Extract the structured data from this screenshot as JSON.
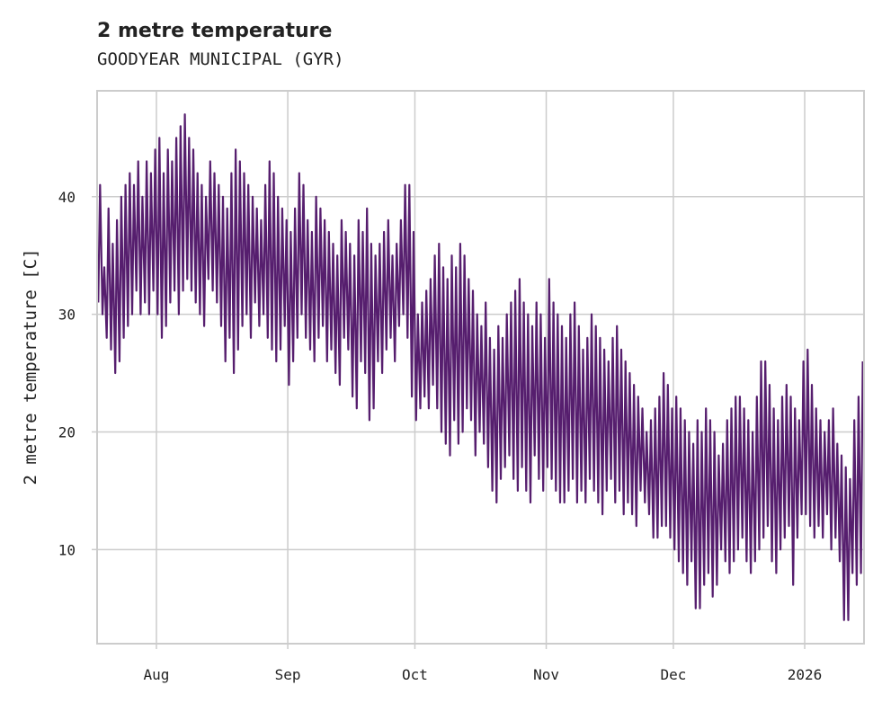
{
  "chart_data": {
    "type": "line",
    "title": "2 metre temperature",
    "subtitle": "GOODYEAR MUNICIPAL (GYR)",
    "xlabel": "",
    "ylabel": "2 metre temperature [C]",
    "start_date": "2025-07-18",
    "xlim_days": [
      0,
      181
    ],
    "ylim": [
      2,
      49
    ],
    "grid": true,
    "line_color": "#561e6e",
    "x_ticks": [
      {
        "label": "Aug",
        "day": 14
      },
      {
        "label": "Sep",
        "day": 45
      },
      {
        "label": "Oct",
        "day": 75
      },
      {
        "label": "Nov",
        "day": 106
      },
      {
        "label": "Dec",
        "day": 136
      },
      {
        "label": "2026",
        "day": 167
      }
    ],
    "y_ticks": [
      10,
      20,
      30,
      40
    ],
    "series": [
      {
        "name": "2 metre temperature",
        "daily_high": [
          41,
          34,
          39,
          36,
          38,
          40,
          41,
          42,
          41,
          43,
          40,
          43,
          42,
          44,
          45,
          42,
          44,
          43,
          45,
          46,
          47,
          45,
          44,
          42,
          41,
          40,
          43,
          42,
          41,
          40,
          39,
          42,
          44,
          43,
          42,
          41,
          40,
          39,
          38,
          41,
          43,
          42,
          40,
          39,
          38,
          37,
          39,
          42,
          41,
          38,
          37,
          40,
          39,
          38,
          37,
          36,
          35,
          38,
          37,
          36,
          35,
          38,
          37,
          39,
          36,
          35,
          36,
          37,
          38,
          35,
          36,
          38,
          41,
          41,
          37,
          30,
          31,
          32,
          33,
          35,
          36,
          34,
          33,
          35,
          34,
          36,
          35,
          33,
          32,
          30,
          29,
          31,
          28,
          27,
          29,
          28,
          30,
          31,
          32,
          33,
          31,
          30,
          29,
          31,
          30,
          28,
          33,
          31,
          30,
          29,
          28,
          30,
          31,
          29,
          27,
          28,
          30,
          29,
          28,
          27,
          26,
          28,
          29,
          27,
          26,
          25,
          24,
          23,
          22,
          20,
          21,
          22,
          23,
          25,
          24,
          22,
          23,
          22,
          21,
          20,
          19,
          21,
          20,
          22,
          21,
          20,
          18,
          19,
          21,
          22,
          23,
          23,
          22,
          21,
          20,
          23,
          26,
          26,
          24,
          22,
          21,
          23,
          24,
          23,
          22,
          21,
          26,
          27,
          24,
          22,
          21,
          20,
          21,
          22,
          19,
          18,
          17,
          16,
          21,
          23,
          26
        ],
        "daily_low": [
          31,
          30,
          28,
          27,
          25,
          26,
          28,
          29,
          30,
          32,
          30,
          31,
          30,
          32,
          30,
          28,
          29,
          31,
          32,
          30,
          32,
          33,
          32,
          31,
          30,
          29,
          33,
          32,
          31,
          29,
          26,
          28,
          25,
          27,
          29,
          30,
          28,
          31,
          29,
          30,
          28,
          27,
          26,
          27,
          29,
          24,
          26,
          28,
          30,
          28,
          27,
          26,
          28,
          29,
          26,
          27,
          25,
          24,
          28,
          27,
          23,
          22,
          26,
          25,
          21,
          22,
          26,
          25,
          27,
          28,
          26,
          29,
          30,
          28,
          23,
          21,
          22,
          23,
          22,
          24,
          22,
          20,
          19,
          18,
          21,
          19,
          20,
          22,
          21,
          18,
          20,
          19,
          17,
          15,
          14,
          16,
          17,
          18,
          16,
          15,
          17,
          15,
          14,
          18,
          16,
          15,
          17,
          16,
          15,
          14,
          14,
          15,
          16,
          14,
          15,
          14,
          16,
          15,
          14,
          13,
          15,
          16,
          14,
          15,
          13,
          14,
          13,
          12,
          15,
          14,
          13,
          11,
          11,
          12,
          12,
          11,
          10,
          9,
          8,
          7,
          9,
          5,
          5,
          7,
          8,
          6,
          7,
          10,
          9,
          8,
          9,
          10,
          11,
          9,
          8,
          9,
          10,
          11,
          12,
          9,
          8,
          10,
          11,
          12,
          7,
          11,
          13,
          13,
          12,
          11,
          12,
          11,
          13,
          10,
          11,
          9,
          4,
          4,
          8,
          7,
          8
        ]
      }
    ]
  }
}
